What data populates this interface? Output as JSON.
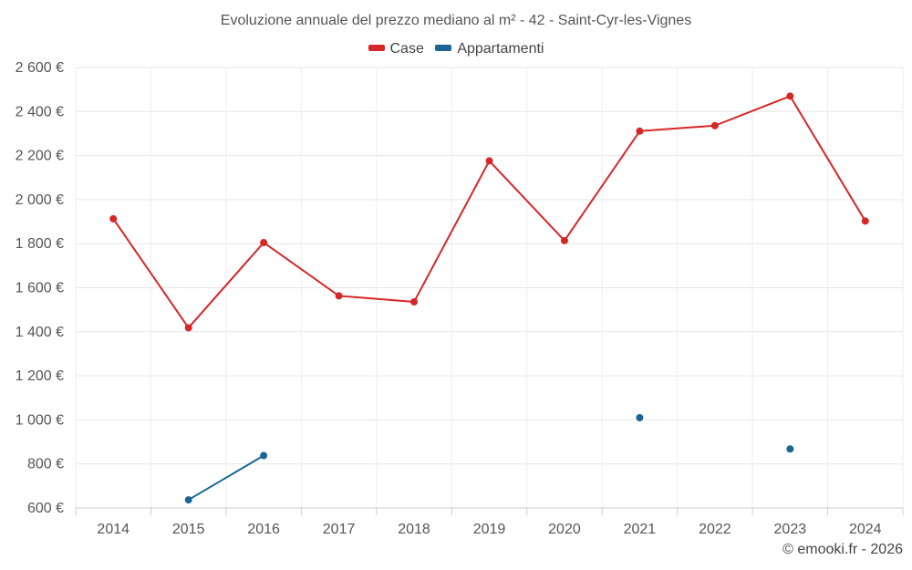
{
  "chart_data": {
    "type": "line",
    "title": "Evoluzione annuale del prezzo mediano al m² - 42 - Saint-Cyr-les-Vignes",
    "xlabel": "",
    "ylabel": "",
    "x": [
      "2014",
      "2015",
      "2016",
      "2017",
      "2018",
      "2019",
      "2020",
      "2021",
      "2022",
      "2023",
      "2024"
    ],
    "ylim": [
      600,
      2600
    ],
    "yticks": [
      600,
      800,
      1000,
      1200,
      1400,
      1600,
      1800,
      2000,
      2200,
      2400,
      2600
    ],
    "ytick_labels": [
      "600 €",
      "800 €",
      "1 000 €",
      "1 200 €",
      "1 400 €",
      "1 600 €",
      "1 800 €",
      "2 000 €",
      "2 200 €",
      "2 400 €",
      "2 600 €"
    ],
    "grid": true,
    "legend_position": "top-center",
    "series": [
      {
        "name": "Case",
        "color": "#d62728",
        "values": [
          1913,
          1418,
          1805,
          1563,
          1536,
          2176,
          1814,
          2311,
          2336,
          2470,
          1903
        ]
      },
      {
        "name": "Appartamenti",
        "color": "#1a6496",
        "values": [
          null,
          637,
          838,
          null,
          null,
          null,
          null,
          1010,
          null,
          868,
          null
        ]
      }
    ]
  },
  "footer": {
    "copyright": "© emooki.fr - 2026"
  }
}
